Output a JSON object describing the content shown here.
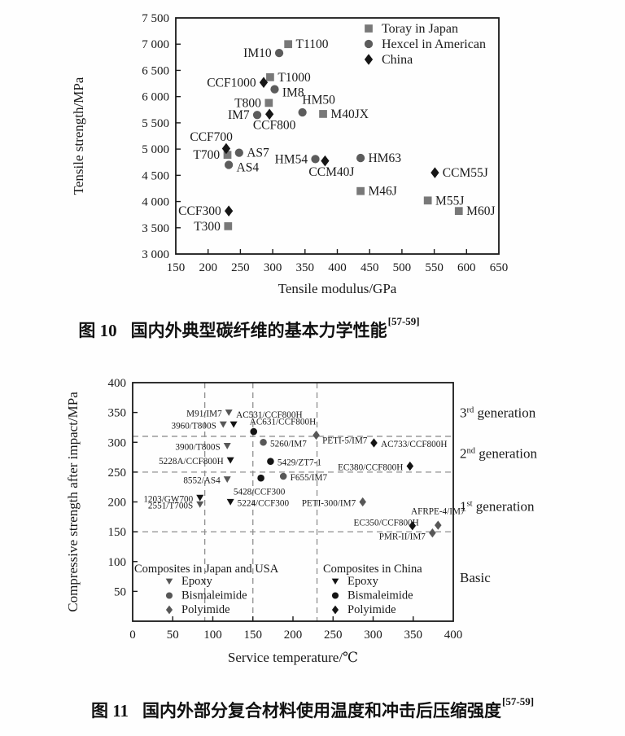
{
  "figure10": {
    "caption": {
      "label": "图 10",
      "text": "国内外典型碳纤维的基本力学性能",
      "ref": "[57-59]"
    }
  },
  "figure11": {
    "caption": {
      "label": "图 11",
      "text": "国内外部分复合材料使用温度和冲击后压缩强度",
      "ref": "[57-59]"
    }
  },
  "chart_data": [
    {
      "type": "scatter",
      "xlabel": "Tensile modulus/GPa",
      "ylabel": "Tensile strength/MPa",
      "xlim": [
        150,
        650
      ],
      "ylim": [
        3000,
        7500
      ],
      "grid": false,
      "legend_position": "top-right-inside",
      "xticks": [
        {
          "v": 150,
          "label": "150"
        },
        {
          "v": 200,
          "label": "200"
        },
        {
          "v": 250,
          "label": "250"
        },
        {
          "v": 300,
          "label": "300"
        },
        {
          "v": 350,
          "label": "350"
        },
        {
          "v": 400,
          "label": "400"
        },
        {
          "v": 450,
          "label": "450"
        },
        {
          "v": 500,
          "label": "500"
        },
        {
          "v": 550,
          "label": "550"
        },
        {
          "v": 600,
          "label": "600"
        },
        {
          "v": 650,
          "label": "650"
        }
      ],
      "yticks": [
        {
          "v": 3000,
          "label": "3 000"
        },
        {
          "v": 3500,
          "label": "3 500"
        },
        {
          "v": 4000,
          "label": "4 000"
        },
        {
          "v": 4500,
          "label": "4 500"
        },
        {
          "v": 5000,
          "label": "5 000"
        },
        {
          "v": 5500,
          "label": "5 500"
        },
        {
          "v": 6000,
          "label": "6 000"
        },
        {
          "v": 6500,
          "label": "6 500"
        },
        {
          "v": 7000,
          "label": "7 000"
        },
        {
          "v": 7500,
          "label": "7 500"
        }
      ],
      "series": [
        {
          "name": "Toray in Japan",
          "marker": "square",
          "color": "#787878",
          "points": [
            {
              "label": "T1100",
              "x": 324,
              "y": 7000,
              "side": "right"
            },
            {
              "label": "T1000",
              "x": 296,
              "y": 6370,
              "side": "right"
            },
            {
              "label": "T800",
              "x": 294,
              "y": 5880,
              "side": "left"
            },
            {
              "label": "M40JX",
              "x": 378,
              "y": 5670,
              "side": "right"
            },
            {
              "label": "T700",
              "x": 230,
              "y": 4890,
              "side": "left"
            },
            {
              "label": "M46J",
              "x": 436,
              "y": 4200,
              "side": "right"
            },
            {
              "label": "M55J",
              "x": 540,
              "y": 4020,
              "side": "right"
            },
            {
              "label": "M60J",
              "x": 588,
              "y": 3820,
              "side": "right"
            },
            {
              "label": "T300",
              "x": 231,
              "y": 3530,
              "side": "left"
            }
          ]
        },
        {
          "name": "Hexcel in American",
          "marker": "circle",
          "color": "#5c5c5c",
          "points": [
            {
              "label": "IM10",
              "x": 310,
              "y": 6830,
              "side": "left"
            },
            {
              "label": "IM8",
              "x": 303,
              "y": 6140,
              "side": "right",
              "dy": 4
            },
            {
              "label": "IM7",
              "x": 276,
              "y": 5650,
              "side": "left"
            },
            {
              "label": "HM50",
              "x": 346,
              "y": 5700,
              "side": "above",
              "dx": 20
            },
            {
              "label": "AS7",
              "x": 248,
              "y": 4930,
              "side": "right"
            },
            {
              "label": "AS4",
              "x": 232,
              "y": 4700,
              "side": "right",
              "dy": 3
            },
            {
              "label": "HM54",
              "x": 366,
              "y": 4810,
              "side": "left"
            },
            {
              "label": "HM63",
              "x": 436,
              "y": 4830,
              "side": "right"
            }
          ]
        },
        {
          "name": "China",
          "marker": "diamond",
          "color": "#161616",
          "points": [
            {
              "label": "CCF1000",
              "x": 286,
              "y": 6270,
              "side": "left"
            },
            {
              "label": "CCF800",
              "x": 295,
              "y": 5665,
              "side": "below",
              "dx": 6
            },
            {
              "label": "CCF700",
              "x": 228,
              "y": 5010,
              "side": "above-left"
            },
            {
              "label": "CCM40J",
              "x": 381,
              "y": 4775,
              "side": "below",
              "dx": 8
            },
            {
              "label": "CCM55J",
              "x": 551,
              "y": 4550,
              "side": "right"
            },
            {
              "label": "CCF300",
              "x": 232,
              "y": 3820,
              "side": "left"
            }
          ]
        }
      ]
    },
    {
      "type": "scatter",
      "xlabel": "Service temperature/℃",
      "ylabel": "Compressive strength after impact/MPa",
      "xlim": [
        0,
        400
      ],
      "ylim": [
        0,
        400
      ],
      "hlines": [
        150,
        250,
        310
      ],
      "vlines": [
        90,
        150,
        230
      ],
      "xticks": [
        {
          "v": 0,
          "label": "0"
        },
        {
          "v": 50,
          "label": "50"
        },
        {
          "v": 100,
          "label": "100"
        },
        {
          "v": 150,
          "label": "150"
        },
        {
          "v": 200,
          "label": "200"
        },
        {
          "v": 250,
          "label": "250"
        },
        {
          "v": 300,
          "label": "300"
        },
        {
          "v": 350,
          "label": "350"
        },
        {
          "v": 400,
          "label": "400"
        }
      ],
      "yticks": [
        {
          "v": 50,
          "label": "50"
        },
        {
          "v": 100,
          "label": "100"
        },
        {
          "v": 150,
          "label": "150"
        },
        {
          "v": 200,
          "label": "200"
        },
        {
          "v": 250,
          "label": "250"
        },
        {
          "v": 300,
          "label": "300"
        },
        {
          "v": 350,
          "label": "350"
        },
        {
          "v": 400,
          "label": "400"
        }
      ],
      "right_labels": [
        {
          "y": 350,
          "parts": [
            [
              "3",
              false
            ],
            [
              "rd",
              true
            ],
            [
              " generation",
              false
            ]
          ]
        },
        {
          "y": 282,
          "parts": [
            [
              "2",
              false
            ],
            [
              "nd",
              true
            ],
            [
              " generation",
              false
            ]
          ]
        },
        {
          "y": 193,
          "parts": [
            [
              "1",
              false
            ],
            [
              "st",
              true
            ],
            [
              " generation",
              false
            ]
          ]
        },
        {
          "y": 74,
          "parts": [
            [
              "Basic",
              false
            ]
          ]
        }
      ],
      "series": [
        {
          "name": "Japan/USA Epoxy",
          "marker": "triangle-down",
          "color": "#575757",
          "points": [
            {
              "label": "M91/IM7",
              "x": 120,
              "y": 350,
              "side": "left"
            },
            {
              "label": "3960/T800S",
              "x": 113,
              "y": 330,
              "side": "left"
            },
            {
              "label": "3900/T800S",
              "x": 118,
              "y": 294,
              "side": "left"
            },
            {
              "label": "8552/AS4",
              "x": 118,
              "y": 238,
              "side": "left"
            },
            {
              "label": "2551/T700S",
              "x": 84,
              "y": 196,
              "side": "left"
            }
          ]
        },
        {
          "name": "Japan/USA Bismaleimide",
          "marker": "circle",
          "color": "#575757",
          "points": [
            {
              "label": "5260/IM7",
              "x": 163,
              "y": 300,
              "side": "right"
            },
            {
              "label": "F655/IM7",
              "x": 188,
              "y": 243,
              "side": "right"
            }
          ]
        },
        {
          "name": "Japan/USA Polyimide",
          "marker": "diamond",
          "color": "#575757",
          "points": [
            {
              "label": "PETI-5/IM7",
              "x": 229,
              "y": 312,
              "side": "below-right"
            },
            {
              "label": "PETI-300/IM7",
              "x": 287,
              "y": 200,
              "side": "left"
            },
            {
              "label": "AFRPE-4/IM7",
              "x": 381,
              "y": 161,
              "side": "above",
              "dy": -4
            },
            {
              "label": "PMR-II/IM7",
              "x": 374,
              "y": 148,
              "side": "left",
              "dy": 3
            }
          ]
        },
        {
          "name": "China Epoxy",
          "marker": "triangle-down",
          "color": "#141414",
          "points": [
            {
              "label": "AC531/CCF800H",
              "x": 126,
              "y": 330,
              "side": "above-right"
            },
            {
              "label": "5228A/CCF800H",
              "x": 122,
              "y": 270,
              "side": "left"
            },
            {
              "label": "5224/CCF300",
              "x": 122,
              "y": 200,
              "side": "right"
            },
            {
              "label": "1203/GW700",
              "x": 84,
              "y": 207,
              "side": "left"
            }
          ]
        },
        {
          "name": "China Bismaleimide",
          "marker": "circle",
          "color": "#141414",
          "points": [
            {
              "label": "AC631/CCF800H",
              "x": 151,
              "y": 318,
              "side": "above-right",
              "dx": -8
            },
            {
              "label": "5429/ZT7-1",
              "x": 172,
              "y": 268,
              "side": "right"
            },
            {
              "label": "5428/CCF300",
              "x": 160,
              "y": 240,
              "side": "below",
              "dy": 3,
              "dx": -2
            }
          ]
        },
        {
          "name": "China Polyimide",
          "marker": "diamond",
          "color": "#141414",
          "points": [
            {
              "label": "AC733/CCF800H",
              "x": 301,
              "y": 299,
              "side": "right"
            },
            {
              "label": "EC380/CCF800H",
              "x": 346,
              "y": 260,
              "side": "left"
            },
            {
              "label": "EC350/CCF800H",
              "x": 349,
              "y": 160,
              "side": "above-left",
              "dy": 8
            }
          ]
        }
      ],
      "legend_blocks": [
        {
          "header": "Composites in Japan and USA",
          "color": "#575757",
          "items": [
            {
              "label": "Epoxy",
              "marker": "triangle-down"
            },
            {
              "label": "Bismaleimide",
              "marker": "circle"
            },
            {
              "label": "Polyimide",
              "marker": "diamond"
            }
          ]
        },
        {
          "header": "Composites in China",
          "color": "#141414",
          "items": [
            {
              "label": "Epoxy",
              "marker": "triangle-down"
            },
            {
              "label": "Bismaleimide",
              "marker": "circle"
            },
            {
              "label": "Polyimide",
              "marker": "diamond"
            }
          ]
        }
      ]
    }
  ]
}
